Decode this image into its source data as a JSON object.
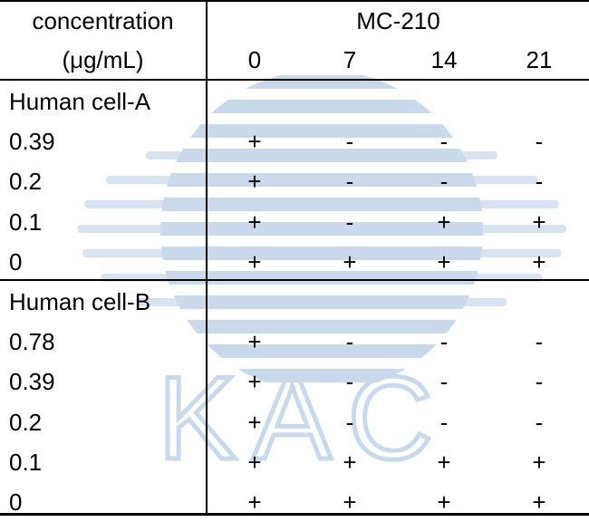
{
  "header": {
    "left_line1": "concentration",
    "left_line2": "(μg/mL)",
    "group_label": "MC-210",
    "columns": [
      "0",
      "7",
      "14",
      "21"
    ]
  },
  "sections": [
    {
      "title": "Human cell-A",
      "rows": [
        {
          "label": "0.39",
          "values": [
            "+",
            "-",
            "-",
            "-"
          ]
        },
        {
          "label": "0.2",
          "values": [
            "+",
            "-",
            "-",
            "-"
          ]
        },
        {
          "label": "0.1",
          "values": [
            "+",
            "-",
            "+",
            "+"
          ]
        },
        {
          "label": "0",
          "values": [
            "+",
            "+",
            "+",
            "+"
          ]
        }
      ]
    },
    {
      "title": "Human cell-B",
      "rows": [
        {
          "label": "0.78",
          "values": [
            "+",
            "-",
            "-",
            "-"
          ]
        },
        {
          "label": "0.39",
          "values": [
            "+",
            "-",
            "-",
            "-"
          ]
        },
        {
          "label": "0.2",
          "values": [
            "+",
            "-",
            "-",
            "-"
          ]
        },
        {
          "label": "0.1",
          "values": [
            "+",
            "+",
            "+",
            "+"
          ]
        },
        {
          "label": "0",
          "values": [
            "+",
            "+",
            "+",
            "+"
          ]
        }
      ]
    }
  ],
  "watermark": {
    "text": "KAC",
    "color": "#c9d9ec"
  }
}
